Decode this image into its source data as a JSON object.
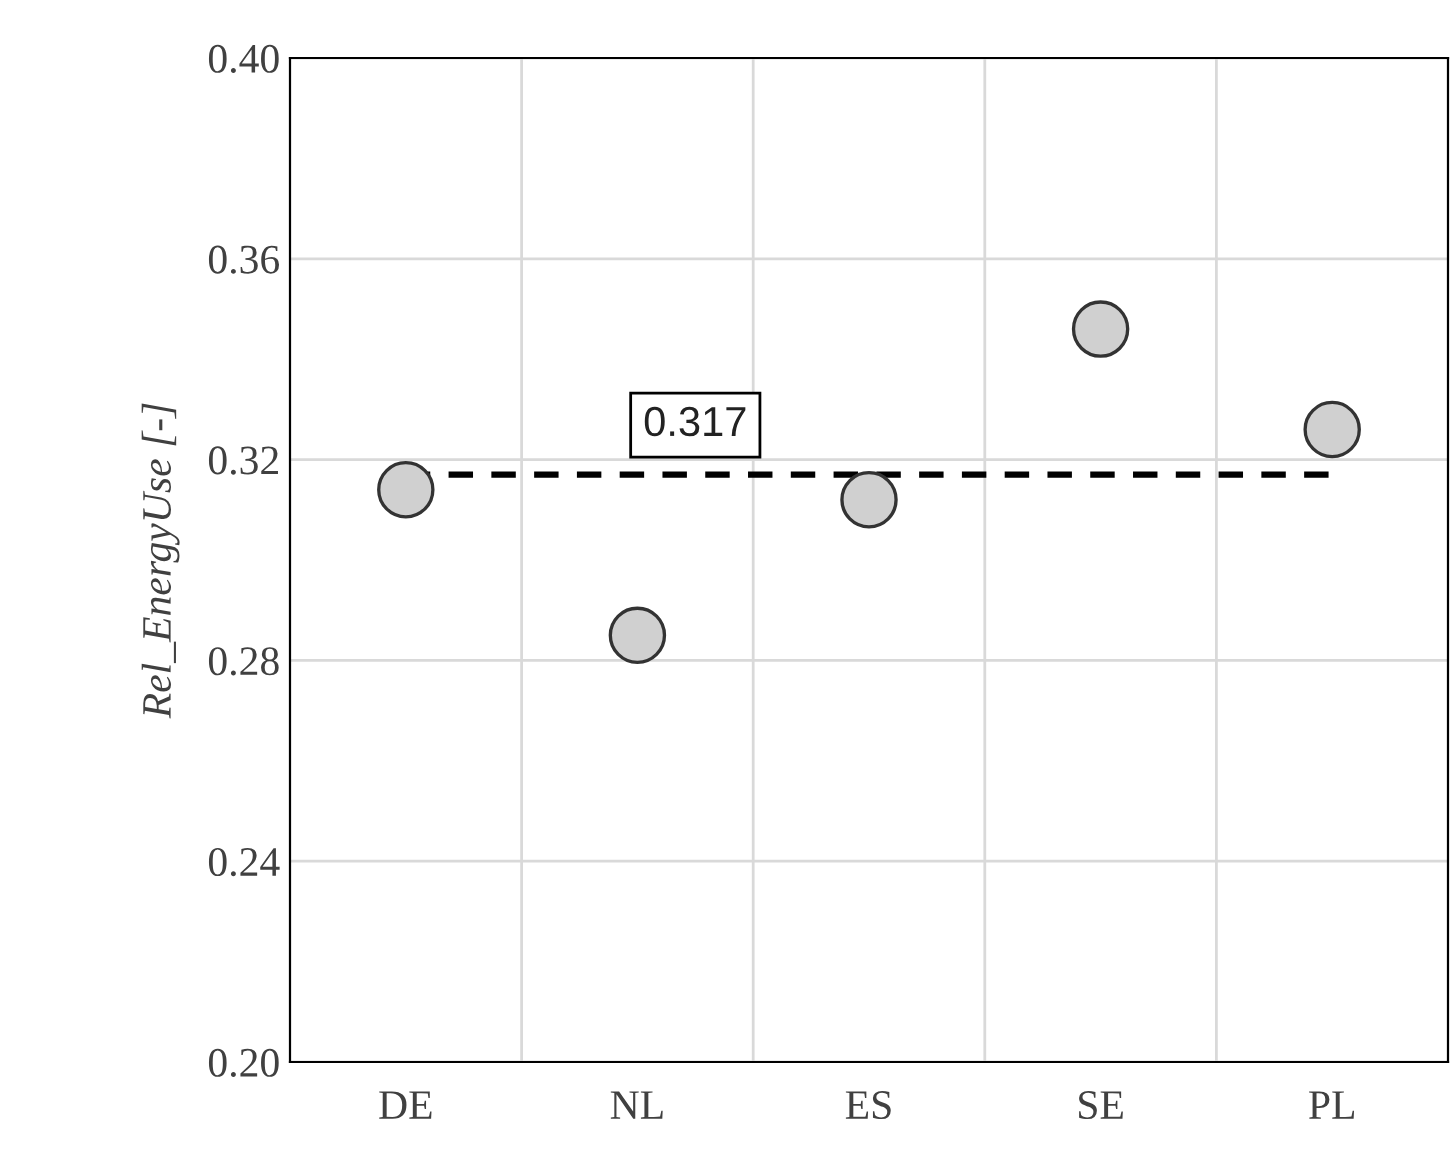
{
  "chart_data": {
    "type": "scatter",
    "ylabel": "Rel_EnergyUse [-]",
    "categories": [
      "DE",
      "NL",
      "ES",
      "SE",
      "PL"
    ],
    "values": [
      0.314,
      0.285,
      0.312,
      0.346,
      0.326
    ],
    "color": "#d0d0d0",
    "marker": "circle",
    "ylim": [
      0.2,
      0.4
    ],
    "yticks": [
      {
        "value": 0.2,
        "label": "0.20"
      },
      {
        "value": 0.24,
        "label": "0.24"
      },
      {
        "value": 0.28,
        "label": "0.28"
      },
      {
        "value": 0.32,
        "label": "0.32"
      },
      {
        "value": 0.36,
        "label": "0.36"
      },
      {
        "value": 0.4,
        "label": "0.40"
      }
    ],
    "grid": true,
    "ref_lines": [
      {
        "axis": "y",
        "value": 0.317,
        "label": "0.317",
        "color": "#000000",
        "line_style": "dashed"
      }
    ]
  }
}
